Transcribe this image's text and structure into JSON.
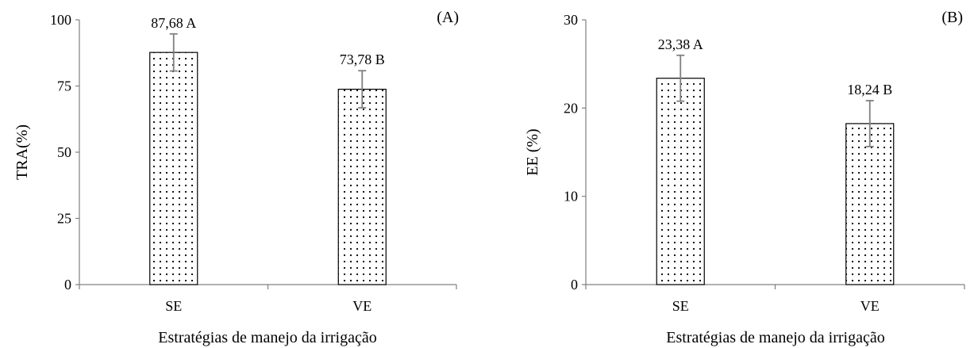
{
  "chart_data": [
    {
      "type": "bar",
      "panel_label": "(A)",
      "categories": [
        "SE",
        "VE"
      ],
      "values": [
        87.68,
        73.78
      ],
      "error": [
        7.0,
        7.0
      ],
      "data_labels": [
        "87,68 A",
        "73,78 B"
      ],
      "xlabel": "Estratégias de manejo da irrigação",
      "ylabel": "TRA(%)",
      "ylim": [
        0,
        100
      ],
      "yticks": [
        "0",
        "25",
        "50",
        "75",
        "100"
      ],
      "grid": false,
      "bar_pattern": "dots"
    },
    {
      "type": "bar",
      "panel_label": "(B)",
      "categories": [
        "SE",
        "VE"
      ],
      "values": [
        23.38,
        18.24
      ],
      "error": [
        2.6,
        2.6
      ],
      "data_labels": [
        "23,38 A",
        "18,24 B"
      ],
      "xlabel": "Estratégias de manejo da irrigação",
      "ylabel": "EE (%)",
      "ylim": [
        0,
        30
      ],
      "yticks": [
        "0",
        "10",
        "20",
        "30"
      ],
      "grid": false,
      "bar_pattern": "dots"
    }
  ],
  "colors": {
    "axis": "#808080",
    "bar_stroke": "#000000",
    "bar_fill": "#ffffff",
    "dot": "#000000",
    "error_bar": "#808080"
  }
}
